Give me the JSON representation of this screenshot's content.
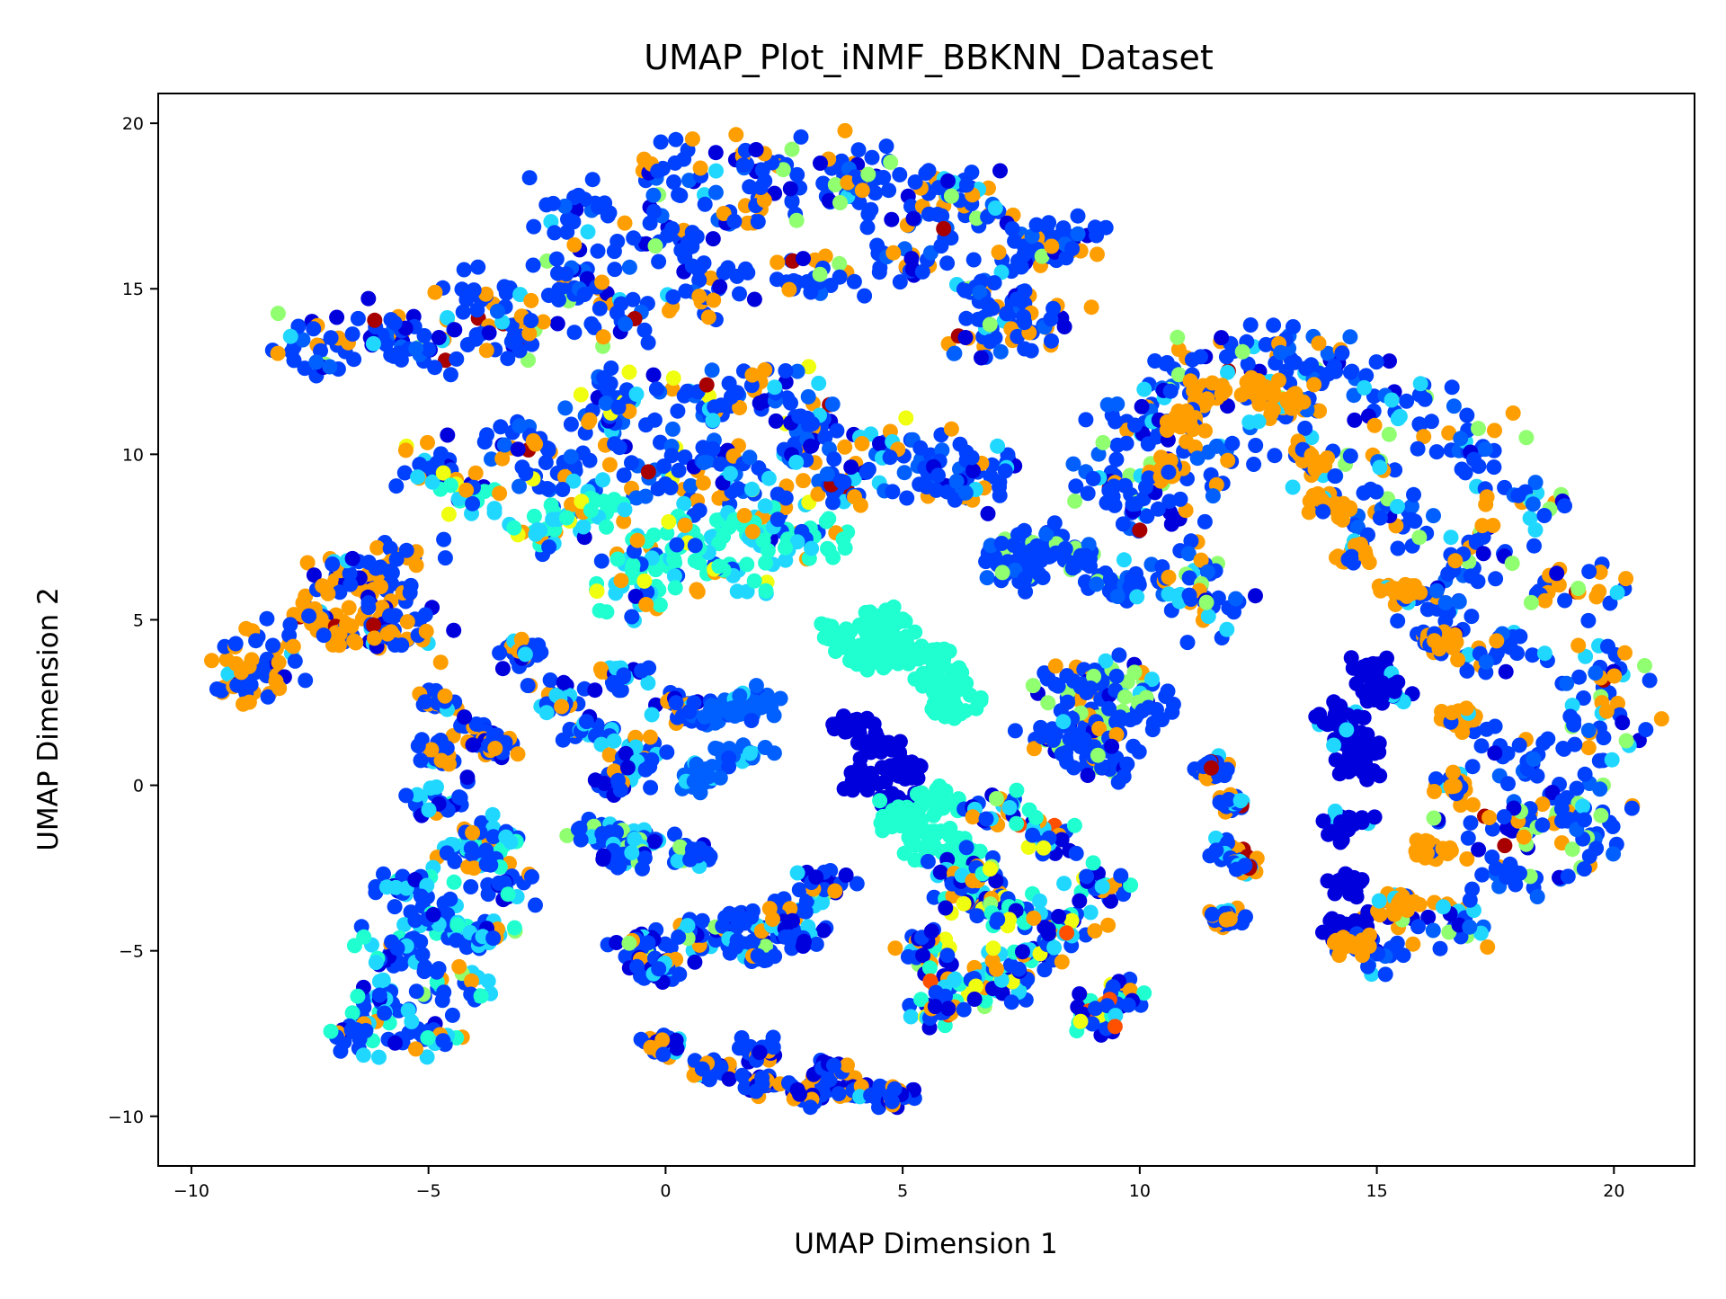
{
  "chart_data": {
    "type": "scatter",
    "title": "UMAP_Plot_iNMF_BBKNN_Dataset",
    "xlabel": "UMAP Dimension 1",
    "ylabel": "UMAP Dimension 2",
    "xlim": [
      -10.7,
      21.7
    ],
    "ylim": [
      -11.5,
      20.9
    ],
    "xticks": [
      -10,
      -5,
      0,
      5,
      10,
      15,
      20
    ],
    "yticks": [
      -10,
      -5,
      0,
      5,
      10,
      15,
      20
    ],
    "xtick_labels": [
      "−10",
      "−5",
      "0",
      "5",
      "10",
      "15",
      "20"
    ],
    "ytick_labels": [
      "−10",
      "−5",
      "0",
      "5",
      "10",
      "15",
      "20"
    ],
    "grid": false,
    "legend": "none",
    "colormap": "jet",
    "palette": {
      "navy": "#00009f",
      "dark-blue": "#0000dd",
      "blue": "#0040ff",
      "mid-blue": "#0060ff",
      "cyan": "#20d8ff",
      "aquamarine": "#20ffd0",
      "light-green": "#90ff70",
      "yellow": "#f0ff10",
      "orange": "#ff9e00",
      "red-orange": "#ff5000",
      "dark-red": "#a80000"
    },
    "clusters": [
      {
        "id": "top-arc",
        "points": [
          [
            -7.5,
            13.2
          ],
          [
            -6,
            13.8
          ],
          [
            -4,
            14.6
          ],
          [
            -2,
            15.3
          ],
          [
            0,
            16.4
          ],
          [
            2,
            17.3
          ],
          [
            4,
            17.9
          ],
          [
            6,
            17.4
          ],
          [
            7.8,
            16.3
          ],
          [
            -5,
            13.2
          ],
          [
            -3,
            13.6
          ],
          [
            -1,
            14.2
          ],
          [
            1,
            15
          ],
          [
            3,
            15.6
          ],
          [
            5,
            15.8
          ],
          [
            6.8,
            15
          ],
          [
            7.8,
            14.2
          ],
          [
            8.3,
            16.8
          ],
          [
            7,
            13.5
          ],
          [
            -2,
            17.2
          ],
          [
            0,
            18.5
          ],
          [
            2,
            18.8
          ],
          [
            4,
            18.6
          ],
          [
            6,
            18.3
          ]
        ],
        "spread": 0.75,
        "mix": {
          "blue": 0.54,
          "orange": 0.16,
          "dark-blue": 0.12,
          "mid-blue": 0.08,
          "light-green": 0.05,
          "cyan": 0.04,
          "dark-red": 0.01
        }
      },
      {
        "id": "lens-upper",
        "points": [
          [
            -5,
            9.5
          ],
          [
            -3,
            10.2
          ],
          [
            -1,
            10.8
          ],
          [
            1,
            11.4
          ],
          [
            3,
            11
          ],
          [
            5,
            10.2
          ],
          [
            6.7,
            9.5
          ],
          [
            -2,
            9.2
          ],
          [
            0,
            9
          ],
          [
            2,
            8.8
          ],
          [
            4,
            8.8
          ],
          [
            6,
            9
          ],
          [
            1,
            10
          ],
          [
            3,
            10
          ],
          [
            -1,
            11.8
          ],
          [
            2,
            12
          ]
        ],
        "spread": 0.65,
        "mix": {
          "blue": 0.48,
          "mid-blue": 0.16,
          "orange": 0.12,
          "dark-blue": 0.1,
          "cyan": 0.1,
          "yellow": 0.02,
          "dark-red": 0.02
        }
      },
      {
        "id": "lens-lower",
        "points": [
          [
            -4.2,
            8.8
          ],
          [
            -2.5,
            7.8
          ],
          [
            -0.5,
            6.8
          ],
          [
            1.5,
            6.4
          ],
          [
            3,
            7.3
          ],
          [
            -1.5,
            8.2
          ],
          [
            0.5,
            7.4
          ],
          [
            2,
            7.8
          ],
          [
            -0.5,
            5.8
          ]
        ],
        "spread": 0.6,
        "mix": {
          "aquamarine": 0.5,
          "cyan": 0.24,
          "blue": 0.1,
          "orange": 0.08,
          "yellow": 0.05,
          "dark-blue": 0.03
        }
      },
      {
        "id": "left-blob",
        "points": [
          [
            -7,
            6.2
          ],
          [
            -6,
            5.8
          ],
          [
            -5.8,
            6.8
          ],
          [
            -7.5,
            5
          ],
          [
            -8.5,
            4
          ],
          [
            -8.8,
            3
          ],
          [
            -6.5,
            4.8
          ],
          [
            -5.5,
            4.5
          ]
        ],
        "spread": 0.6,
        "mix": {
          "blue": 0.45,
          "orange": 0.38,
          "dark-blue": 0.1,
          "cyan": 0.04,
          "dark-red": 0.03
        }
      },
      {
        "id": "small-left",
        "points": [
          [
            -4.8,
            2.5
          ],
          [
            -4,
            1.6
          ],
          [
            -4.8,
            1
          ],
          [
            -3.6,
            1.2
          ]
        ],
        "spread": 0.3,
        "mix": {
          "blue": 0.5,
          "orange": 0.3,
          "dark-blue": 0.15,
          "cyan": 0.05
        }
      },
      {
        "id": "small-left2",
        "points": [
          [
            -3,
            4
          ],
          [
            -2.3,
            2.6
          ],
          [
            -1.6,
            1.6
          ],
          [
            -0.9,
            3.2
          ],
          [
            0.3,
            2.4
          ],
          [
            -0.5,
            1
          ],
          [
            -1,
            0.2
          ]
        ],
        "spread": 0.4,
        "mix": {
          "blue": 0.5,
          "orange": 0.2,
          "dark-blue": 0.15,
          "cyan": 0.15
        }
      },
      {
        "id": "mid-blob-a",
        "points": [
          [
            1.2,
            2.2
          ],
          [
            1.6,
            1
          ],
          [
            0.8,
            0.3
          ],
          [
            1.8,
            2.5
          ]
        ],
        "spread": 0.4,
        "mix": {
          "mid-blue": 0.65,
          "blue": 0.25,
          "cyan": 0.1
        }
      },
      {
        "id": "mid-blob-b",
        "points": [
          [
            -1.5,
            -1.4
          ],
          [
            -0.5,
            -1.6
          ],
          [
            0.5,
            -2
          ],
          [
            -1,
            -2.1
          ]
        ],
        "spread": 0.35,
        "mix": {
          "blue": 0.6,
          "cyan": 0.2,
          "dark-blue": 0.1,
          "light-green": 0.1
        }
      },
      {
        "id": "lower-left",
        "points": [
          [
            -4.8,
            -0.5
          ],
          [
            -4,
            -2
          ],
          [
            -3.8,
            -1.5
          ],
          [
            -5.4,
            -3
          ],
          [
            -4.8,
            -4
          ],
          [
            -3.8,
            -4.5
          ],
          [
            -5.8,
            -5
          ],
          [
            -6,
            -6.5
          ],
          [
            -6.5,
            -7.5
          ],
          [
            -4.5,
            -6
          ],
          [
            -5,
            -7.5
          ],
          [
            -3.5,
            -3
          ]
        ],
        "spread": 0.55,
        "mix": {
          "blue": 0.45,
          "cyan": 0.22,
          "aquamarine": 0.12,
          "dark-blue": 0.12,
          "orange": 0.07,
          "light-green": 0.02
        }
      },
      {
        "id": "bottom-mid-left",
        "points": [
          [
            -0.5,
            -4.8
          ],
          [
            0.5,
            -4.5
          ],
          [
            1.5,
            -4.2
          ],
          [
            2.5,
            -3.8
          ],
          [
            3.3,
            -3
          ],
          [
            0,
            -5.6
          ],
          [
            1.8,
            -5
          ],
          [
            2.8,
            -4.5
          ]
        ],
        "spread": 0.4,
        "mix": {
          "blue": 0.45,
          "dark-blue": 0.22,
          "cyan": 0.18,
          "orange": 0.1,
          "light-green": 0.05
        }
      },
      {
        "id": "bottom-streak",
        "points": [
          [
            0,
            -7.8
          ],
          [
            1,
            -8.6
          ],
          [
            2,
            -9
          ],
          [
            3,
            -9.3
          ],
          [
            4,
            -9.2
          ],
          [
            4.8,
            -9.4
          ],
          [
            2,
            -8
          ],
          [
            3.5,
            -8.6
          ]
        ],
        "spread": 0.3,
        "mix": {
          "blue": 0.5,
          "orange": 0.3,
          "dark-blue": 0.15,
          "cyan": 0.05
        }
      },
      {
        "id": "center-aqua",
        "points": [
          [
            3.8,
            4.5
          ],
          [
            4.5,
            5
          ],
          [
            5,
            4.2
          ],
          [
            5.5,
            3.8
          ],
          [
            5.8,
            3
          ],
          [
            6,
            2.4
          ],
          [
            4.4,
            3.9
          ]
        ],
        "spread": 0.4,
        "mix": {
          "aquamarine": 1
        }
      },
      {
        "id": "center-darkblue",
        "points": [
          [
            4,
            1.8
          ],
          [
            4.5,
            1.2
          ],
          [
            5,
            0.5
          ],
          [
            4.8,
            -0.5
          ],
          [
            4.2,
            0.2
          ]
        ],
        "spread": 0.3,
        "mix": {
          "dark-blue": 1
        }
      },
      {
        "id": "center-aqua2",
        "points": [
          [
            5,
            -1
          ],
          [
            5.5,
            -1.6
          ],
          [
            6,
            -2
          ],
          [
            5.7,
            -0.5
          ]
        ],
        "spread": 0.4,
        "mix": {
          "aquamarine": 1
        }
      },
      {
        "id": "center-lower",
        "points": [
          [
            5.5,
            -4.8
          ],
          [
            6.2,
            -5.8
          ],
          [
            7,
            -6
          ],
          [
            7.6,
            -5
          ],
          [
            6.5,
            -3.5
          ],
          [
            7.2,
            -3.8
          ],
          [
            8.5,
            -4.2
          ],
          [
            9.2,
            -3
          ],
          [
            8,
            -1.5
          ],
          [
            7,
            -0.8
          ],
          [
            6.3,
            -2.5
          ],
          [
            5.7,
            -6.8
          ],
          [
            9.5,
            -6.5
          ],
          [
            9,
            -7
          ]
        ],
        "spread": 0.5,
        "mix": {
          "blue": 0.3,
          "dark-blue": 0.18,
          "aquamarine": 0.15,
          "cyan": 0.12,
          "orange": 0.12,
          "yellow": 0.07,
          "red-orange": 0.04,
          "light-green": 0.02
        }
      },
      {
        "id": "right-mid-blob",
        "points": [
          [
            7.2,
            7
          ],
          [
            8,
            7.2
          ],
          [
            8.8,
            6.8
          ],
          [
            9.5,
            6
          ],
          [
            7.5,
            6.5
          ]
        ],
        "spread": 0.4,
        "mix": {
          "blue": 0.8,
          "light-green": 0.12,
          "mid-blue": 0.08
        }
      },
      {
        "id": "right-blob-2",
        "points": [
          [
            8.5,
            3
          ],
          [
            9.5,
            3.3
          ],
          [
            10,
            2.4
          ],
          [
            9,
            1.8
          ],
          [
            8.2,
            1.4
          ],
          [
            9.3,
            0.8
          ]
        ],
        "spread": 0.5,
        "mix": {
          "blue": 0.6,
          "light-green": 0.18,
          "orange": 0.1,
          "dark-blue": 0.08,
          "cyan": 0.04
        }
      },
      {
        "id": "thin-right",
        "points": [
          [
            11.5,
            0.5
          ],
          [
            12,
            -0.5
          ],
          [
            11.8,
            -2
          ],
          [
            12.2,
            -2.5
          ],
          [
            11.8,
            -4
          ]
        ],
        "spread": 0.25,
        "mix": {
          "blue": 0.5,
          "orange": 0.3,
          "cyan": 0.15,
          "dark-red": 0.05
        }
      },
      {
        "id": "right-arc",
        "points": [
          [
            9.5,
            9
          ],
          [
            10,
            11
          ],
          [
            11,
            12.5
          ],
          [
            12.5,
            13.2
          ],
          [
            14,
            12.8
          ],
          [
            15.5,
            11.5
          ],
          [
            17,
            10.2
          ],
          [
            18.2,
            8.5
          ],
          [
            19.2,
            6
          ],
          [
            19.8,
            3.5
          ],
          [
            19.8,
            1.5
          ],
          [
            19.2,
            -0.5
          ],
          [
            18,
            -2.5
          ],
          [
            16.5,
            -4
          ],
          [
            15.2,
            -4.8
          ],
          [
            17,
            7
          ],
          [
            17.5,
            4
          ],
          [
            16.2,
            5.5
          ],
          [
            15.4,
            8
          ],
          [
            14.2,
            9.5
          ],
          [
            13,
            11.5
          ],
          [
            11.2,
            9.8
          ],
          [
            10.5,
            8.5
          ],
          [
            11,
            6.5
          ],
          [
            11.5,
            5.4
          ],
          [
            18,
            1
          ],
          [
            17.5,
            -1
          ],
          [
            19,
            -1.5
          ]
        ],
        "spread": 0.75,
        "mix": {
          "blue": 0.5,
          "mid-blue": 0.12,
          "orange": 0.16,
          "dark-blue": 0.08,
          "cyan": 0.07,
          "light-green": 0.06,
          "dark-red": 0.01
        }
      },
      {
        "id": "right-navy",
        "points": [
          [
            14.2,
            2
          ],
          [
            14.5,
            0.5
          ],
          [
            14.3,
            -1.2
          ],
          [
            14.5,
            -3
          ],
          [
            14.4,
            -4.3
          ],
          [
            15,
            3.5
          ],
          [
            14.6,
            1.2
          ],
          [
            15.2,
            2.8
          ]
        ],
        "spread": 0.35,
        "mix": {
          "dark-blue": 0.92,
          "cyan": 0.08
        }
      },
      {
        "id": "right-orange-band",
        "points": [
          [
            13,
            11.5
          ],
          [
            13.5,
            10
          ],
          [
            14,
            8.5
          ],
          [
            14.5,
            7
          ],
          [
            15.5,
            5.8
          ],
          [
            16.3,
            4.3
          ],
          [
            16.8,
            2
          ],
          [
            16.6,
            0
          ],
          [
            16.2,
            -2
          ],
          [
            15.5,
            -3.5
          ],
          [
            14.5,
            -4.8
          ],
          [
            12.5,
            12
          ],
          [
            11.5,
            11.8
          ],
          [
            11,
            11
          ],
          [
            10.5,
            9.5
          ]
        ],
        "spread": 0.28,
        "mix": {
          "orange": 0.8,
          "blue": 0.12,
          "cyan": 0.08
        }
      }
    ]
  }
}
